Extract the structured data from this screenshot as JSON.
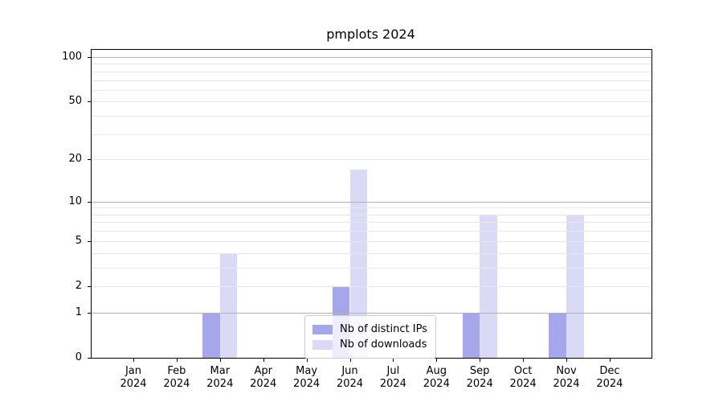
{
  "chart_data": {
    "type": "bar",
    "title": "pmplots 2024",
    "xlabel": "",
    "ylabel": "",
    "yscale": "log1p",
    "ylim": [
      0,
      112
    ],
    "yticks": [
      0,
      1,
      2,
      5,
      10,
      20,
      50,
      100
    ],
    "gridlines": {
      "major": [
        1,
        10,
        100
      ],
      "minor": [
        2,
        3,
        4,
        5,
        6,
        7,
        8,
        9,
        20,
        30,
        40,
        50,
        60,
        70,
        80,
        90
      ]
    },
    "grid": true,
    "legend_position": "lower center",
    "months": [
      {
        "month": "Jan",
        "year": "2024"
      },
      {
        "month": "Feb",
        "year": "2024"
      },
      {
        "month": "Mar",
        "year": "2024"
      },
      {
        "month": "Apr",
        "year": "2024"
      },
      {
        "month": "May",
        "year": "2024"
      },
      {
        "month": "Jun",
        "year": "2024"
      },
      {
        "month": "Jul",
        "year": "2024"
      },
      {
        "month": "Aug",
        "year": "2024"
      },
      {
        "month": "Sep",
        "year": "2024"
      },
      {
        "month": "Oct",
        "year": "2024"
      },
      {
        "month": "Nov",
        "year": "2024"
      },
      {
        "month": "Dec",
        "year": "2024"
      }
    ],
    "series": [
      {
        "name": "Nb of distinct IPs",
        "color": "#a6a6ec",
        "values": [
          0,
          0,
          1,
          0,
          0,
          2,
          0,
          0,
          1,
          0,
          1,
          0
        ]
      },
      {
        "name": "Nb of downloads",
        "color": "#dadaf6",
        "values": [
          0,
          0,
          4,
          0,
          0,
          17,
          0,
          0,
          8,
          0,
          8,
          0
        ]
      }
    ]
  },
  "colors": {
    "grid_major": "#b2b2b2",
    "grid_minor": "#e8e8e8",
    "spine": "#000000",
    "text": "#000000",
    "legend_border": "#cccccc",
    "legend_bg": "rgba(255,255,255,0.8)"
  }
}
